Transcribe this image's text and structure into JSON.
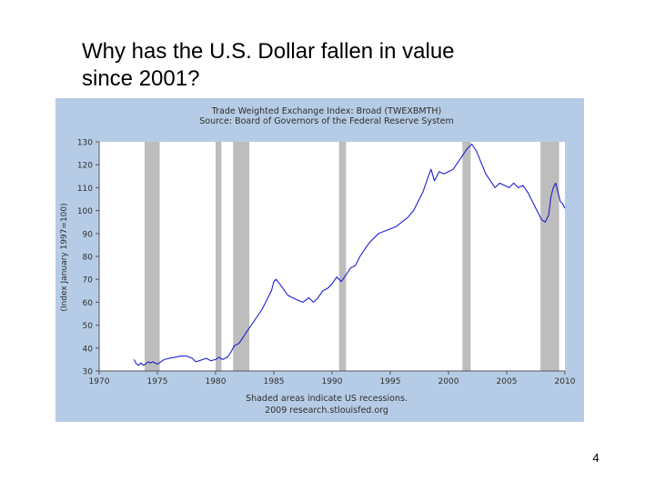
{
  "slide": {
    "title": "Why has the U.S. Dollar fallen in value\nsince 2001?",
    "page_number": "4"
  },
  "colors": {
    "frame_background": "#b6cce6",
    "plot_background": "#ffffff",
    "series_line": "#1f1fd0",
    "recession_shade": "#bdbdbd"
  },
  "chart_data": {
    "type": "line",
    "title": "Trade Weighted Exchange Index: Broad (TWEXBMTH)",
    "subtitle": "Source: Board of Governors of the Federal Reserve System",
    "ylabel": "(Index January 1997=100)",
    "xlabel": "",
    "xlim": [
      1970,
      2010
    ],
    "ylim": [
      30,
      130
    ],
    "x_ticks": [
      "1970",
      "1975",
      "1980",
      "1985",
      "1990",
      "1995",
      "2000",
      "2005",
      "2010"
    ],
    "y_ticks": [
      "30",
      "40",
      "50",
      "60",
      "70",
      "80",
      "90",
      "100",
      "110",
      "120",
      "130"
    ],
    "grid": false,
    "footnote_1": "Shaded areas indicate US recessions.",
    "footnote_2": "2009 research.stlouisfed.org",
    "recessions": [
      {
        "start": 1973.9,
        "end": 1975.2
      },
      {
        "start": 1980.0,
        "end": 1980.5
      },
      {
        "start": 1981.5,
        "end": 1982.9
      },
      {
        "start": 1990.6,
        "end": 1991.2
      },
      {
        "start": 2001.2,
        "end": 2001.9
      },
      {
        "start": 2007.9,
        "end": 2009.5
      }
    ],
    "series": [
      {
        "x": [
          1973.0,
          1973.2,
          1973.4,
          1973.6,
          1973.8,
          1974.0,
          1974.2,
          1974.4,
          1974.6,
          1974.8,
          1975.0,
          1975.3,
          1975.6,
          1976.0,
          1976.5,
          1977.0,
          1977.5,
          1978.0,
          1978.3,
          1978.6,
          1978.9,
          1979.2,
          1979.6,
          1980.0,
          1980.3,
          1980.6,
          1981.0,
          1981.3,
          1981.6,
          1982.0,
          1982.4,
          1982.8,
          1983.2,
          1983.6,
          1984.0,
          1984.4,
          1984.8,
          1985.0,
          1985.2,
          1985.5,
          1985.8,
          1986.2,
          1986.6,
          1987.0,
          1987.5,
          1988.0,
          1988.4,
          1988.8,
          1989.2,
          1989.6,
          1990.0,
          1990.4,
          1990.8,
          1991.2,
          1991.6,
          1992.0,
          1992.4,
          1992.8,
          1993.2,
          1993.6,
          1994.0,
          1994.5,
          1995.0,
          1995.5,
          1996.0,
          1996.5,
          1997.0,
          1997.4,
          1997.8,
          1998.2,
          1998.5,
          1998.8,
          1999.2,
          1999.6,
          2000.0,
          2000.4,
          2000.8,
          2001.2,
          2001.6,
          2002.0,
          2002.4,
          2002.8,
          2003.2,
          2003.6,
          2004.0,
          2004.4,
          2004.8,
          2005.2,
          2005.6,
          2006.0,
          2006.4,
          2006.8,
          2007.2,
          2007.6,
          2008.0,
          2008.3,
          2008.6,
          2008.8,
          2009.0,
          2009.2,
          2009.4,
          2009.6,
          2009.8,
          2010.0
        ],
        "y": [
          35,
          33,
          32.5,
          33.5,
          32.5,
          33,
          34,
          33.5,
          34,
          33.5,
          33,
          34,
          35,
          35.5,
          36,
          36.5,
          36.5,
          35.5,
          34,
          34.5,
          35,
          35.5,
          34.5,
          35,
          36,
          35,
          36,
          38,
          41,
          42,
          45,
          48,
          51,
          54,
          57,
          61,
          65,
          69,
          70,
          68,
          66,
          63,
          62,
          61,
          60,
          62,
          60,
          62,
          65,
          66,
          68,
          71,
          69,
          72,
          75,
          76,
          80,
          83,
          86,
          88,
          90,
          91,
          92,
          93,
          95,
          97,
          100,
          104,
          108,
          114,
          118,
          113,
          117,
          116,
          117,
          118,
          121,
          124,
          127,
          129,
          126,
          121,
          116,
          113,
          110,
          112,
          111,
          110,
          112,
          110,
          111,
          108,
          104,
          100,
          96,
          95,
          98,
          106,
          110,
          112,
          108,
          104,
          103,
          101
        ]
      }
    ]
  }
}
